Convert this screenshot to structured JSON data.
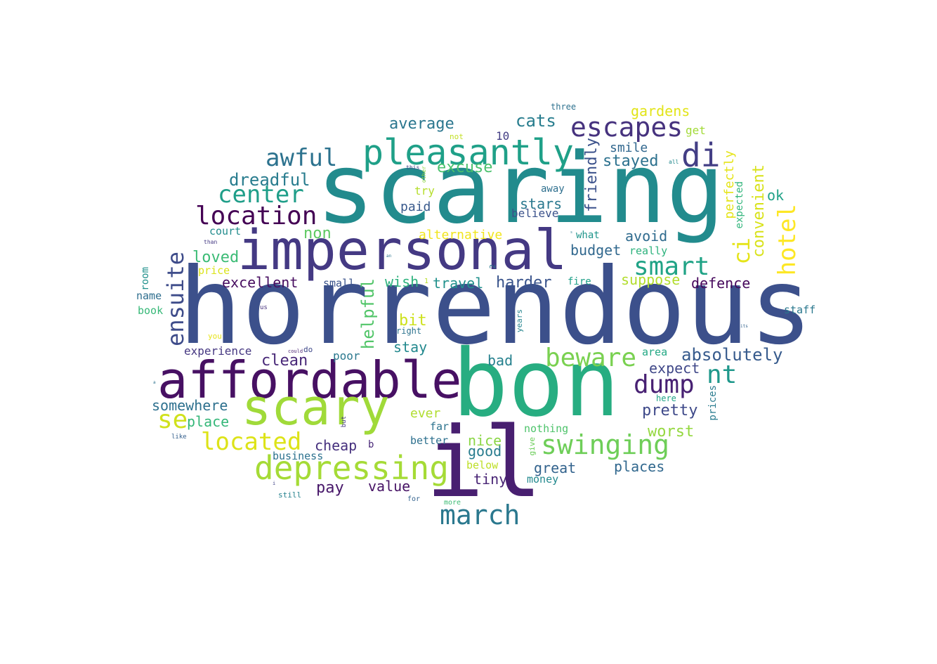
{
  "wordcloud": {
    "words": [
      {
        "text": "horrendous",
        "color": "#3c508b"
      },
      {
        "text": "scaring",
        "color": "#228b8d"
      },
      {
        "text": "bon",
        "color": "#27ad81"
      },
      {
        "text": "impersonal",
        "color": "#443983"
      },
      {
        "text": "il",
        "color": "#481f70"
      },
      {
        "text": "affordable",
        "color": "#471063"
      },
      {
        "text": "scary",
        "color": "#a0da39"
      },
      {
        "text": "pleasantly",
        "color": "#1fa088"
      },
      {
        "text": "depressing",
        "color": "#a5db36"
      },
      {
        "text": "swinging",
        "color": "#6ece58"
      },
      {
        "text": "escapes",
        "color": "#46327e"
      },
      {
        "text": "location",
        "color": "#440154"
      },
      {
        "text": "di",
        "color": "#433e85"
      },
      {
        "text": "ensuite",
        "color": "#3e4c8a"
      },
      {
        "text": "center",
        "color": "#1f9e89"
      },
      {
        "text": "awful",
        "color": "#2c728e"
      },
      {
        "text": "smart",
        "color": "#20a386"
      },
      {
        "text": "hotel",
        "color": "#fde725"
      },
      {
        "text": "march",
        "color": "#2a788e"
      },
      {
        "text": "located",
        "color": "#dde318"
      },
      {
        "text": "beware",
        "color": "#7ad151"
      },
      {
        "text": "dump",
        "color": "#482173"
      },
      {
        "text": "nt",
        "color": "#1f988b"
      },
      {
        "text": "ci",
        "color": "#e5e419"
      },
      {
        "text": "se",
        "color": "#d0e11c"
      },
      {
        "text": "absolutely",
        "color": "#375b8d"
      },
      {
        "text": "helpful",
        "color": "#52c569"
      },
      {
        "text": "convenient",
        "color": "#d8e219"
      },
      {
        "text": "friendly",
        "color": "#3b518b"
      },
      {
        "text": "dreadful",
        "color": "#287c8e"
      },
      {
        "text": "cats",
        "color": "#287d8e"
      },
      {
        "text": "average",
        "color": "#2a768e"
      },
      {
        "text": "excuse",
        "color": "#4ac16d"
      },
      {
        "text": "pretty",
        "color": "#3e4989"
      },
      {
        "text": "worst",
        "color": "#95d840"
      },
      {
        "text": "somewhere",
        "color": "#2d708e"
      },
      {
        "text": "place",
        "color": "#35b779"
      },
      {
        "text": "value",
        "color": "#471365"
      },
      {
        "text": "pay",
        "color": "#48186a"
      },
      {
        "text": "tiny",
        "color": "#482475"
      },
      {
        "text": "great",
        "color": "#33638d"
      },
      {
        "text": "places",
        "color": "#31688e"
      },
      {
        "text": "clean",
        "color": "#482878"
      },
      {
        "text": "cheap",
        "color": "#46307e"
      },
      {
        "text": "good",
        "color": "#287c8e"
      },
      {
        "text": "nice",
        "color": "#8bd646"
      },
      {
        "text": "bad",
        "color": "#26818e"
      },
      {
        "text": "stay",
        "color": "#23898e"
      },
      {
        "text": "bit",
        "color": "#cde11d"
      },
      {
        "text": "wish",
        "color": "#2db27d"
      },
      {
        "text": "travel",
        "color": "#21918c"
      },
      {
        "text": "harder",
        "color": "#3a548c"
      },
      {
        "text": "excellent",
        "color": "#470d60"
      },
      {
        "text": "loved",
        "color": "#3bbb75"
      },
      {
        "text": "non",
        "color": "#5ec962"
      },
      {
        "text": "stars",
        "color": "#2a788e"
      },
      {
        "text": "budget",
        "color": "#31688e"
      },
      {
        "text": "avoid",
        "color": "#2f6b8e"
      },
      {
        "text": "smile",
        "color": "#31678e"
      },
      {
        "text": "stayed",
        "color": "#2c718e"
      },
      {
        "text": "gardens",
        "color": "#e2e418"
      },
      {
        "text": "perfectly",
        "color": "#e5e419"
      },
      {
        "text": "ok",
        "color": "#1fa187"
      },
      {
        "text": "suppose",
        "color": "#b2dd2d"
      },
      {
        "text": "defence",
        "color": "#46085c"
      },
      {
        "text": "expect",
        "color": "#3f4788"
      },
      {
        "text": "alternative",
        "color": "#f1e51d"
      },
      {
        "text": "paid",
        "color": "#38598c"
      },
      {
        "text": "away",
        "color": "#2e6f8e"
      },
      {
        "text": "believe",
        "color": "#3b528b"
      },
      {
        "text": "10",
        "color": "#433d84"
      },
      {
        "text": "try",
        "color": "#b5de2b"
      },
      {
        "text": "court",
        "color": "#228c8d"
      },
      {
        "text": "price",
        "color": "#dae319"
      },
      {
        "text": "experience",
        "color": "#453781"
      },
      {
        "text": "small",
        "color": "#3a538b"
      },
      {
        "text": "poor",
        "color": "#2a788e"
      },
      {
        "text": "ever",
        "color": "#b0dd2f"
      },
      {
        "text": "far",
        "color": "#2c738e"
      },
      {
        "text": "better",
        "color": "#2d708e"
      },
      {
        "text": "business",
        "color": "#2c728e"
      },
      {
        "text": "below",
        "color": "#bddf26"
      },
      {
        "text": "money",
        "color": "#23898e"
      },
      {
        "text": "nothing",
        "color": "#4ec36b"
      },
      {
        "text": "area",
        "color": "#22a884"
      },
      {
        "text": "really",
        "color": "#2db27d"
      },
      {
        "text": "what",
        "color": "#1f958b"
      },
      {
        "text": "fire",
        "color": "#1fa088"
      },
      {
        "text": "get",
        "color": "#a2da37"
      },
      {
        "text": "expected",
        "color": "#31b57b"
      },
      {
        "text": "prices",
        "color": "#297b8e"
      },
      {
        "text": "staff",
        "color": "#2a788e"
      },
      {
        "text": "here",
        "color": "#20a386"
      },
      {
        "text": "room",
        "color": "#21918c"
      },
      {
        "text": "name",
        "color": "#2e6e8e"
      },
      {
        "text": "book",
        "color": "#37b878"
      },
      {
        "text": "give",
        "color": "#6ccd5a"
      },
      {
        "text": "years",
        "color": "#25848e"
      },
      {
        "text": "three",
        "color": "#2d718e"
      },
      {
        "text": "not",
        "color": "#c2df23"
      },
      {
        "text": "b",
        "color": "#482777"
      },
      {
        "text": "2",
        "color": "#2a778e"
      },
      {
        "text": "do",
        "color": "#3f4889"
      },
      {
        "text": "you",
        "color": "#e7e419"
      },
      {
        "text": "right",
        "color": "#2c738e"
      },
      {
        "text": "like",
        "color": "#35608d"
      },
      {
        "text": "still",
        "color": "#26828e"
      },
      {
        "text": "for",
        "color": "#33638d"
      },
      {
        "text": "more",
        "color": "#3dbc74"
      },
      {
        "text": "but",
        "color": "#453882"
      },
      {
        "text": "us",
        "color": "#46327e"
      },
      {
        "text": "this",
        "color": "#404387"
      },
      {
        "text": "other",
        "color": "#8ed645"
      },
      {
        "text": "all",
        "color": "#23898e"
      },
      {
        "text": "than",
        "color": "#443983"
      },
      {
        "text": "could",
        "color": "#481f70"
      },
      {
        "text": "its",
        "color": "#33638d"
      },
      {
        "text": "an",
        "color": "#2c728e"
      },
      {
        "text": "1",
        "color": "#b8de29"
      },
      {
        "text": "i",
        "color": "#414487"
      },
      {
        "text": "a",
        "color": "#2d708e"
      },
      {
        "text": "s",
        "color": "#2a788e"
      }
    ]
  }
}
